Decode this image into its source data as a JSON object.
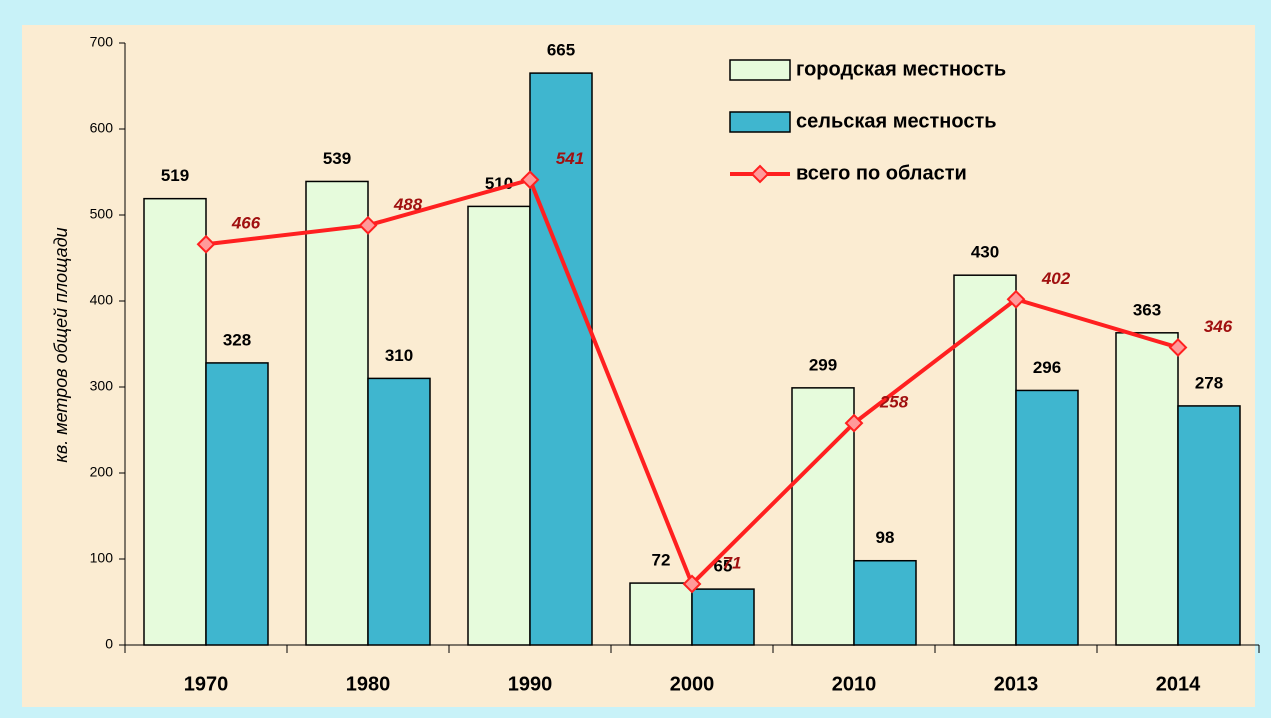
{
  "chart_data": {
    "type": "bar_line",
    "y_label": "кв. метров общей площади",
    "categories": [
      "1970",
      "1980",
      "1990",
      "2000",
      "2010",
      "2013",
      "2014"
    ],
    "series": [
      {
        "name": "городская местность",
        "type": "bar",
        "color": "#e6fbdc",
        "values": [
          519,
          539,
          510,
          72,
          299,
          430,
          363
        ]
      },
      {
        "name": "сельская местность",
        "type": "bar",
        "color": "#3fb6cf",
        "values": [
          328,
          310,
          665,
          65,
          98,
          296,
          278
        ]
      },
      {
        "name": "всего по области",
        "type": "line",
        "color": "#ff2020",
        "values": [
          466,
          488,
          541,
          71,
          258,
          402,
          346
        ]
      }
    ],
    "ylim": [
      0,
      700
    ],
    "yticks": [
      0,
      100,
      200,
      300,
      400,
      500,
      600,
      700
    ],
    "legend": "top-right"
  }
}
